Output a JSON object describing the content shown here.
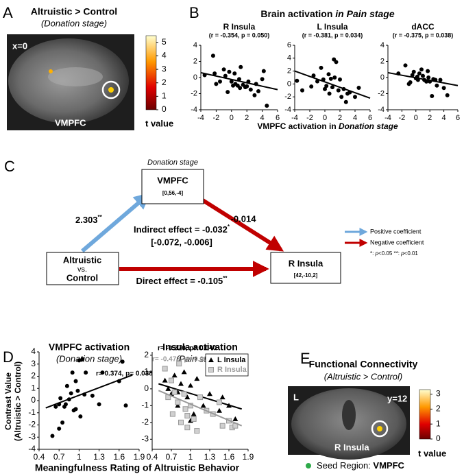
{
  "panel_a": {
    "label": "A",
    "title": "Altruistic > Control",
    "subtitle": "(Donation stage)",
    "slice": "x=0",
    "region": "VMPFC",
    "colorbar": {
      "lim": [
        0,
        5.5
      ],
      "ticks": [
        0,
        1,
        2,
        3,
        4,
        5
      ],
      "label": "t value"
    }
  },
  "panel_b": {
    "label": "B",
    "title": [
      "Brain activation ",
      "in Pain stage"
    ],
    "x_label": [
      "VMPFC activation in ",
      "Donation stage"
    ]
  },
  "panel_c": {
    "label": "C",
    "stage": "Donation stage",
    "nodes": [
      {
        "label": "VMPFC",
        "coords": "[0,56,-4]"
      },
      {
        "label": "Altruistic",
        "sub": "vs.",
        "label2": "Control"
      },
      {
        "label": "R Insula",
        "coords": "[42,-10,2]"
      }
    ],
    "paths": {
      "a": "2.303",
      "a_sig": "**",
      "b": "-0.014",
      "indirect": "Indirect effect = -0.032",
      "indirect_sig": "*",
      "ci": "[-0.072, -0.006]",
      "direct": "Direct effect = -0.105",
      "direct_sig": "**"
    },
    "legend": {
      "positive": "Positive coefficient",
      "negative": "Negative coefficient",
      "sig": [
        "*",
        ": ",
        "p",
        "<0.05   ",
        "**",
        ": ",
        "p",
        "<0.01"
      ]
    }
  },
  "panel_d": {
    "label": "D",
    "y_label": [
      "Contrast Value",
      "(Altruistic > Control)"
    ],
    "x_label": "Meaningfulness Rating of Altruistic Behavior"
  },
  "panel_e": {
    "label": "E",
    "title": "Functional Connectivity",
    "subtitle": "(Altruistic > Control)",
    "side": "L",
    "slice": "y=12",
    "region": "R Insula",
    "colorbar": {
      "lim": [
        0,
        3.3
      ],
      "ticks": [
        0,
        1,
        2,
        3
      ],
      "label": "t value"
    },
    "seed": [
      "Seed Region: ",
      "VMPFC"
    ]
  },
  "chart_data": [
    {
      "type": "scatter",
      "title": "R Insula",
      "subtitle": "(r = -0.354, p = 0.050)",
      "xlim": [
        -4,
        6
      ],
      "ylim": [
        -4,
        4
      ],
      "xticks": [
        -4,
        -2,
        0,
        2,
        4,
        6
      ],
      "yticks": [
        -4,
        -2,
        0,
        2,
        4
      ],
      "series": [
        {
          "color": "#000000",
          "marker": "circle",
          "x": [
            -3.5,
            -2.4,
            -2.2,
            -1.5,
            -1,
            -0.8,
            -0.5,
            -0.3,
            0,
            0.2,
            0.5,
            0.8,
            1,
            1.2,
            1.5,
            1.8,
            2,
            2.2,
            2.5,
            3,
            3.2,
            3.5,
            4,
            4.2,
            4.6,
            -2,
            1.1,
            0.4
          ],
          "y": [
            0.3,
            2.7,
            0.5,
            -0.5,
            1,
            0.2,
            -1.8,
            0.7,
            -0.5,
            -1,
            -0.8,
            -1,
            -0.2,
            1.3,
            -0.9,
            -1.2,
            -1.1,
            -0.5,
            -1.5,
            -2.2,
            -0.8,
            -1.7,
            -0.2,
            0.8,
            -3.5,
            -0.8,
            -1.3,
            0.5
          ],
          "fit": {
            "x": [
              -4,
              6
            ],
            "y": [
              0.6,
              -1.5
            ]
          }
        }
      ]
    },
    {
      "type": "scatter",
      "title": "L Insula",
      "subtitle": "(r = -0.381, p = 0.034)",
      "xlim": [
        -4,
        6
      ],
      "ylim": [
        -4,
        6
      ],
      "xticks": [
        -4,
        -2,
        0,
        2,
        4,
        6
      ],
      "yticks": [
        -4,
        -2,
        0,
        2,
        4,
        6
      ],
      "series": [
        {
          "color": "#000000",
          "marker": "circle",
          "x": [
            -3.7,
            -3,
            -1.5,
            -1,
            -0.5,
            -0.2,
            0,
            0.2,
            0.5,
            0.8,
            1,
            1.2,
            1.5,
            1.8,
            2,
            2.2,
            2.5,
            3,
            3.3,
            4,
            4.5,
            -1.8,
            1.3,
            0.6,
            2.8
          ],
          "y": [
            0.5,
            -1,
            1.3,
            0.4,
            2.5,
            0.7,
            -0.8,
            -0.3,
            1.5,
            0.8,
            -0.5,
            3.8,
            3.4,
            -1,
            0.7,
            -2,
            -0.8,
            -1.5,
            -1.3,
            -2,
            -0.6,
            -0.4,
            1,
            -1.5,
            -2.8
          ],
          "fit": {
            "x": [
              -4,
              6
            ],
            "y": [
              2,
              -2.2
            ]
          }
        }
      ]
    },
    {
      "type": "scatter",
      "title": "dACC",
      "subtitle": "(r = -0.375, p = 0.038)",
      "xlim": [
        -4,
        6
      ],
      "ylim": [
        -4,
        4
      ],
      "xticks": [
        -4,
        -2,
        0,
        2,
        4,
        6
      ],
      "yticks": [
        -4,
        -2,
        0,
        2,
        4
      ],
      "series": [
        {
          "color": "#000000",
          "marker": "circle",
          "x": [
            -2.5,
            -1.5,
            -1,
            -0.5,
            -0.3,
            0,
            0.3,
            0.5,
            0.8,
            1,
            1.2,
            1.5,
            1.8,
            2,
            2.3,
            2.5,
            3,
            3.5,
            4,
            4.5,
            -0.8,
            0.2,
            1.7,
            2.8
          ],
          "y": [
            0.5,
            1.5,
            -0.8,
            0.3,
            0.7,
            -0.1,
            -0.3,
            0.5,
            1,
            0.2,
            -0.3,
            -0.5,
            0,
            -0.5,
            -2.3,
            -0.2,
            -1,
            -0.3,
            -1.3,
            -2.2,
            -0.6,
            0.1,
            0.8,
            -0.3
          ],
          "fit": {
            "x": [
              -4,
              6
            ],
            "y": [
              0.6,
              -1
            ]
          }
        }
      ]
    },
    {
      "type": "scatter",
      "title": "VMPFC activation",
      "subtitle": "(Donation stage)",
      "xlim": [
        0.4,
        1.9
      ],
      "ylim": [
        -4,
        4
      ],
      "xticks": [
        0.4,
        0.7,
        1,
        1.3,
        1.6,
        1.9
      ],
      "yticks": [
        -4,
        -3,
        -2,
        -1,
        0,
        1,
        2,
        3,
        4
      ],
      "annotations": [
        {
          "text": "r= 0.374, p= 0.038",
          "color": "#000000"
        }
      ],
      "series": [
        {
          "color": "#000000",
          "marker": "circle",
          "x": [
            0.6,
            0.65,
            0.7,
            0.72,
            0.75,
            0.78,
            0.8,
            0.82,
            0.85,
            0.88,
            0.9,
            0.92,
            0.95,
            0.98,
            1.0,
            1.02,
            1.05,
            1.08,
            1.1,
            1.2,
            1.3,
            1.35,
            1.6,
            1.65,
            1.7,
            0.7,
            0.95
          ],
          "y": [
            -2.9,
            -0.5,
            -0.3,
            0.2,
            -1.8,
            -0.5,
            -0.3,
            1.2,
            0.1,
            0.6,
            2.3,
            -0.8,
            1.6,
            0.8,
            3.3,
            -1.3,
            3.4,
            0.5,
            2.3,
            0.4,
            -0.3,
            2.3,
            1.6,
            3.2,
            -0.4,
            -2.3,
            -0.7
          ],
          "fit": {
            "x": [
              0.5,
              1.8
            ],
            "y": [
              -0.6,
              2.1
            ]
          }
        }
      ]
    },
    {
      "type": "scatter",
      "title": "Insula activation",
      "subtitle": "(Pain stage)",
      "xlim": [
        0.4,
        1.9
      ],
      "ylim": [
        -3.6,
        2.2
      ],
      "xticks": [
        0.4,
        0.7,
        1,
        1.3,
        1.6,
        1.9
      ],
      "yticks": [
        -3,
        -2,
        -1,
        0,
        1,
        2
      ],
      "annotations": [
        {
          "text": "r= -0.370, p= 0.040",
          "color": "#000000"
        },
        {
          "text": "r= -0.473, p= 0.007",
          "color": "#999999"
        }
      ],
      "legend": "upper right",
      "series": [
        {
          "name": "L Insula",
          "color": "#000000",
          "marker": "triangle",
          "x": [
            0.6,
            0.65,
            0.7,
            0.75,
            0.8,
            0.85,
            0.9,
            0.95,
            1.0,
            1.05,
            1.1,
            1.15,
            1.2,
            1.3,
            1.4,
            1.45,
            1.5,
            1.6,
            1.7,
            0.8,
            1.0
          ],
          "y": [
            0.5,
            0,
            -0.3,
            0.8,
            -1,
            0.3,
            1,
            -0.5,
            0.2,
            -1.5,
            0.6,
            -0.5,
            -1,
            -0.3,
            1.8,
            -1.3,
            -0.5,
            -1,
            -1.8,
            -0.2,
            -1.9
          ],
          "fit": {
            "x": [
              0.5,
              1.8
            ],
            "y": [
              0.3,
              -1.2
            ]
          }
        },
        {
          "name": "R Insula",
          "color": "#999999",
          "marker": "square",
          "x": [
            0.6,
            0.65,
            0.7,
            0.72,
            0.8,
            0.82,
            0.85,
            0.9,
            0.92,
            0.95,
            1.0,
            1.05,
            1.1,
            1.15,
            1.25,
            1.35,
            1.45,
            1.5,
            1.6,
            1.65,
            1.7,
            0.75,
            0.95
          ],
          "y": [
            1.2,
            -0.5,
            0.5,
            -1.5,
            -0.8,
            1.5,
            -2,
            -0.3,
            -1.2,
            -2.3,
            -1,
            -1.8,
            -2.5,
            -0.5,
            -1.3,
            -1.5,
            -0.8,
            -2.2,
            -1.9,
            -2.3,
            -2.2,
            -0.2,
            -1.6
          ],
          "fit": {
            "x": [
              0.5,
              1.8
            ],
            "y": [
              -0.1,
              -2.2
            ]
          }
        }
      ]
    }
  ]
}
